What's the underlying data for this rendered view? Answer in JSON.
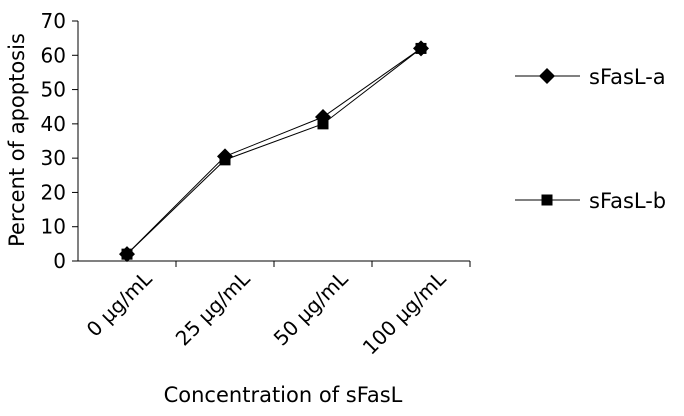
{
  "chart_data": {
    "type": "line",
    "categories": [
      "0 µg/mL",
      "25 µg/mL",
      "50 µg/mL",
      "100 µg/mL"
    ],
    "series": [
      {
        "name": "sFasL-a",
        "marker": "diamond",
        "values": [
          2,
          30.5,
          42,
          62
        ]
      },
      {
        "name": "sFasL-b",
        "marker": "square",
        "values": [
          2,
          29.5,
          40,
          62
        ]
      }
    ],
    "xlabel": "Concentration of sFasL",
    "ylabel": "Percent of apoptosis",
    "ylim": [
      0,
      70
    ],
    "yticks": [
      "0",
      "10",
      "20",
      "30",
      "40",
      "50",
      "60",
      "70"
    ],
    "grid": false,
    "legend": "right",
    "colors": {
      "line": "#000000",
      "marker": "#000000"
    }
  }
}
